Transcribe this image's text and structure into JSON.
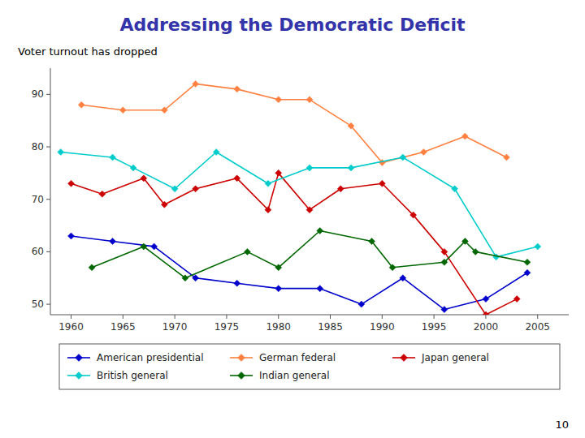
{
  "chart_data": {
    "type": "line",
    "title": "Addressing the Democratic Deficit",
    "subtitle": "Voter turnout has dropped",
    "annotation": "10",
    "title_color": "#3333AA",
    "marker": "diamond",
    "legend": "bottom",
    "grid": false,
    "series": [
      {
        "name": "American presidential",
        "color": "#0000CC",
        "x": [
          1960,
          1964,
          1968,
          1972,
          1976,
          1980,
          1984,
          1988,
          1992,
          1996,
          2000,
          2004
        ],
        "values": [
          63,
          62,
          61,
          55,
          54,
          53,
          53,
          50,
          55,
          49,
          51,
          56
        ]
      },
      {
        "name": "German federal",
        "color": "#FF8040",
        "x": [
          1961,
          1965,
          1969,
          1972,
          1976,
          1980,
          1983,
          1987,
          1990,
          1994,
          1998,
          2002
        ],
        "values": [
          88,
          87,
          87,
          92,
          91,
          89,
          89,
          84,
          77,
          79,
          82,
          78
        ]
      },
      {
        "name": "Japan general",
        "color": "#CC0000",
        "x": [
          1960,
          1963,
          1967,
          1969,
          1972,
          1976,
          1979,
          1980,
          1983,
          1986,
          1990,
          1993,
          1996,
          2000,
          2003
        ],
        "values": [
          73,
          71,
          74,
          69,
          72,
          74,
          68,
          75,
          68,
          72,
          73,
          67,
          60,
          48,
          51
        ]
      },
      {
        "name": "British general",
        "color": "#00CCCC",
        "x": [
          1959,
          1964,
          1966,
          1970,
          1974,
          1979,
          1983,
          1987,
          1992,
          1997,
          2001,
          2005
        ],
        "values": [
          79,
          78,
          76,
          72,
          79,
          73,
          76,
          76,
          78,
          72,
          59,
          61
        ]
      },
      {
        "name": "Indian general",
        "color": "#006600",
        "x": [
          1962,
          1967,
          1971,
          1977,
          1980,
          1984,
          1989,
          1991,
          1996,
          1998,
          1999,
          2004
        ],
        "values": [
          57,
          61,
          55,
          60,
          57,
          64,
          62,
          57,
          58,
          62,
          60,
          58
        ]
      }
    ],
    "xlim": [
      1958,
      2008
    ],
    "xticks": [
      1960,
      1965,
      1970,
      1975,
      1980,
      1985,
      1990,
      1995,
      2000,
      2005
    ],
    "ylim": [
      48,
      95
    ],
    "yticks": [
      50,
      60,
      70,
      80,
      90
    ]
  }
}
